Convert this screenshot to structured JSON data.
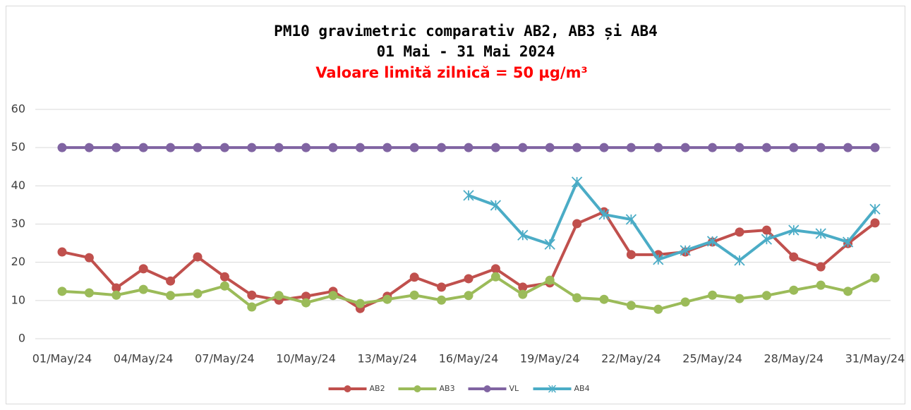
{
  "chart_data": {
    "type": "line",
    "title": "PM10 gravimetric comparativ AB2, AB3 și AB4",
    "subtitle": "01 Mai  - 31 Mai  2024",
    "annotation": "Valoare limită zilnică  = 50 µg/m³",
    "categories": [
      "01/May/24",
      null,
      null,
      "04/May/24",
      null,
      null,
      "07/May/24",
      null,
      null,
      "10/May/24",
      null,
      null,
      "13/May/24",
      null,
      null,
      "16/May/24",
      null,
      null,
      "19/May/24",
      null,
      null,
      "22/May/24",
      null,
      null,
      "25/May/24",
      null,
      null,
      "28/May/24",
      null,
      null,
      "31/May/24"
    ],
    "series": [
      {
        "name": "AB2",
        "color": "#c0504d",
        "marker": "circle",
        "values": [
          22.7,
          21.2,
          13.3,
          18.3,
          15.1,
          21.4,
          16.2,
          11.4,
          10.1,
          11.1,
          12.4,
          7.9,
          11.1,
          16.1,
          13.5,
          15.7,
          18.3,
          13.5,
          14.6,
          30.1,
          33.2,
          22.0,
          22.0,
          22.7,
          25.3,
          27.9,
          28.4,
          21.4,
          18.8,
          24.9,
          30.3
        ]
      },
      {
        "name": "AB3",
        "color": "#9bbb59",
        "marker": "circle",
        "values": [
          12.4,
          12.0,
          11.4,
          12.9,
          11.3,
          11.8,
          13.8,
          8.3,
          11.3,
          9.4,
          11.3,
          9.2,
          10.3,
          11.4,
          10.1,
          11.3,
          16.2,
          11.6,
          15.3,
          10.7,
          10.3,
          8.7,
          7.7,
          9.6,
          11.4,
          10.5,
          11.3,
          12.7,
          14.0,
          12.4,
          15.9
        ]
      },
      {
        "name": "VL",
        "color": "#8064a2",
        "marker": "circle",
        "values": [
          50,
          50,
          50,
          50,
          50,
          50,
          50,
          50,
          50,
          50,
          50,
          50,
          50,
          50,
          50,
          50,
          50,
          50,
          50,
          50,
          50,
          50,
          50,
          50,
          50,
          50,
          50,
          50,
          50,
          50,
          50
        ]
      },
      {
        "name": "AB4",
        "color": "#4bacc6",
        "marker": "star",
        "values": [
          null,
          null,
          null,
          null,
          null,
          null,
          null,
          null,
          null,
          null,
          null,
          null,
          null,
          null,
          null,
          37.5,
          34.9,
          27.1,
          24.7,
          41.0,
          32.5,
          31.2,
          20.7,
          23.1,
          25.5,
          20.5,
          26.0,
          28.4,
          27.5,
          25.3,
          33.9
        ]
      }
    ],
    "ylim": [
      0,
      60
    ],
    "yticks": [
      0,
      10,
      20,
      30,
      40,
      50,
      60
    ],
    "grid": true,
    "legend": "bottom"
  }
}
